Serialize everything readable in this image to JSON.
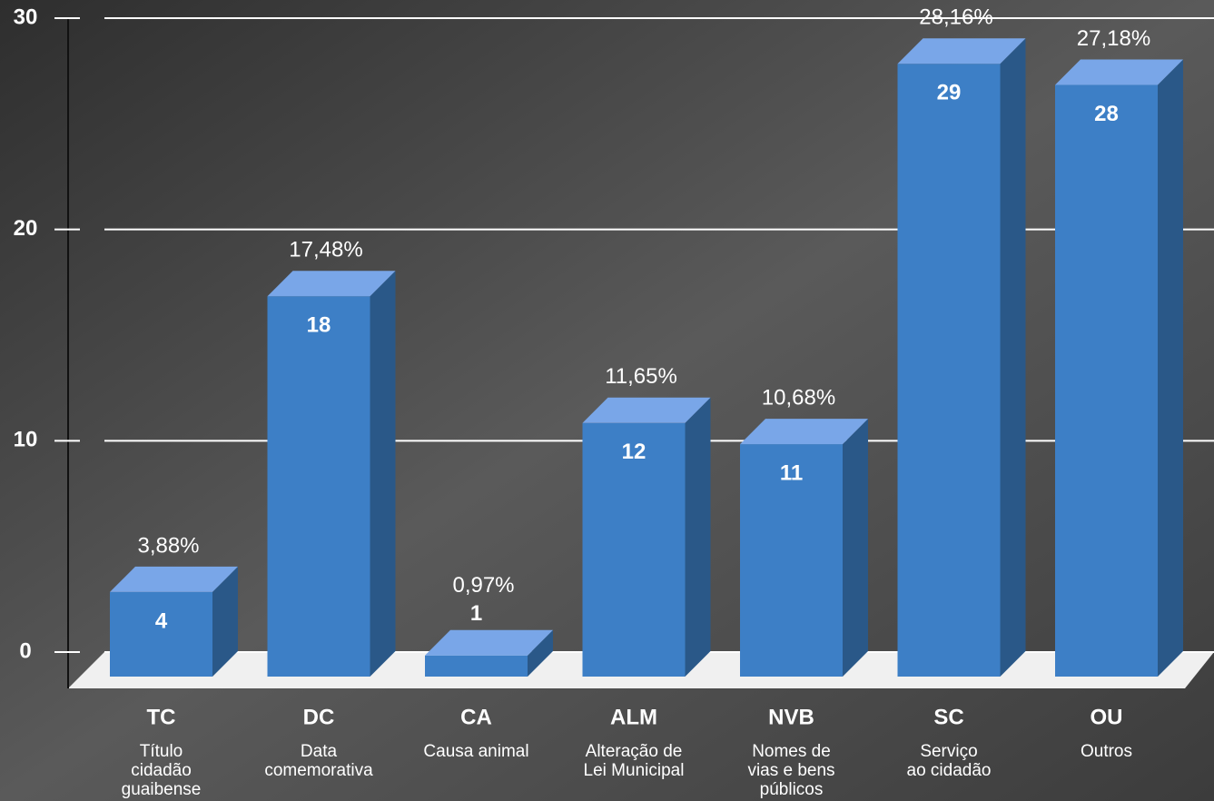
{
  "chart_data": {
    "type": "bar3d",
    "categories": [
      "TC",
      "DC",
      "CA",
      "ALM",
      "NVB",
      "SC",
      "OU"
    ],
    "descriptions": [
      [
        "Título",
        "cidadão",
        "guaibense"
      ],
      [
        "Data",
        "comemorativa"
      ],
      [
        "Causa animal"
      ],
      [
        "Alteração de",
        "Lei Municipal"
      ],
      [
        "Nomes de",
        "vias e bens",
        "públicos"
      ],
      [
        "Serviço",
        "ao cidadão"
      ],
      [
        "Outros"
      ]
    ],
    "values": [
      4,
      18,
      1,
      12,
      11,
      29,
      28
    ],
    "percentages": [
      3.88,
      17.48,
      0.97,
      11.65,
      10.68,
      28.16,
      27.18
    ],
    "percentage_labels": [
      "3,88%",
      "17,48%",
      "0,97%",
      "11,65%",
      "10,68%",
      "28,16%",
      "27,18%"
    ],
    "color": "#3d7fc6",
    "ylim": [
      0,
      30
    ],
    "yticks": [
      0,
      10,
      20,
      30
    ],
    "grid": true
  }
}
